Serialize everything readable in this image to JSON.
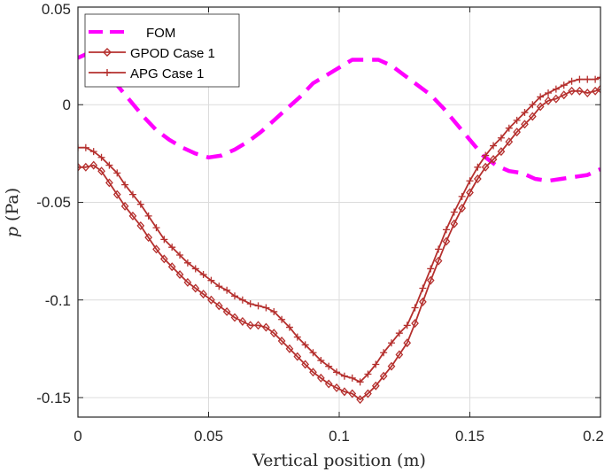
{
  "chart_data": {
    "type": "line",
    "title": "",
    "xlabel": "Vertical position (m)",
    "ylabel_symbol": "p",
    "ylabel_unit": "(Pa)",
    "xlim": [
      0,
      0.2
    ],
    "ylim": [
      -0.16,
      0.05
    ],
    "xticks": [
      0,
      0.05,
      0.1,
      0.15,
      0.2
    ],
    "xtick_labels": [
      "0",
      "0.05",
      "0.1",
      "0.15",
      "0.2"
    ],
    "yticks": [
      0.05,
      0,
      -0.05,
      -0.1,
      -0.15
    ],
    "ytick_labels": [
      "0.05",
      "0",
      "-0.05",
      "-0.1",
      "-0.15"
    ],
    "grid": true,
    "legend_position": "top-left",
    "series": [
      {
        "name": "FOM",
        "color": "#ff00ff",
        "style": "dashed",
        "marker": "none",
        "x": [
          0,
          0.005,
          0.01,
          0.015,
          0.02,
          0.025,
          0.03,
          0.035,
          0.04,
          0.045,
          0.05,
          0.055,
          0.06,
          0.065,
          0.07,
          0.075,
          0.08,
          0.085,
          0.09,
          0.095,
          0.1,
          0.105,
          0.11,
          0.115,
          0.12,
          0.125,
          0.13,
          0.135,
          0.14,
          0.145,
          0.15,
          0.155,
          0.16,
          0.165,
          0.17,
          0.175,
          0.18,
          0.185,
          0.19,
          0.195,
          0.2
        ],
        "y": [
          0.024,
          0.027,
          0.02,
          0.01,
          0.002,
          -0.006,
          -0.013,
          -0.018,
          -0.022,
          -0.025,
          -0.027,
          -0.026,
          -0.023,
          -0.019,
          -0.014,
          -0.008,
          -0.002,
          0.004,
          0.011,
          0.015,
          0.019,
          0.023,
          0.023,
          0.023,
          0.02,
          0.015,
          0.01,
          0.005,
          -0.002,
          -0.01,
          -0.018,
          -0.026,
          -0.031,
          -0.034,
          -0.035,
          -0.038,
          -0.039,
          -0.038,
          -0.037,
          -0.036,
          -0.033
        ]
      },
      {
        "name": "GPOD Case 1",
        "color": "#b5302e",
        "style": "solid",
        "marker": "diamond",
        "x": [
          0,
          0.003,
          0.006,
          0.009,
          0.012,
          0.015,
          0.018,
          0.021,
          0.024,
          0.027,
          0.03,
          0.033,
          0.036,
          0.039,
          0.042,
          0.045,
          0.048,
          0.051,
          0.054,
          0.057,
          0.06,
          0.063,
          0.066,
          0.069,
          0.072,
          0.075,
          0.078,
          0.081,
          0.084,
          0.087,
          0.09,
          0.093,
          0.096,
          0.099,
          0.102,
          0.105,
          0.108,
          0.111,
          0.114,
          0.117,
          0.12,
          0.123,
          0.126,
          0.129,
          0.132,
          0.135,
          0.138,
          0.141,
          0.144,
          0.147,
          0.15,
          0.153,
          0.156,
          0.159,
          0.162,
          0.165,
          0.168,
          0.171,
          0.174,
          0.177,
          0.18,
          0.183,
          0.186,
          0.189,
          0.192,
          0.195,
          0.198,
          0.2
        ],
        "y": [
          -0.032,
          -0.032,
          -0.031,
          -0.034,
          -0.04,
          -0.046,
          -0.052,
          -0.057,
          -0.062,
          -0.068,
          -0.074,
          -0.079,
          -0.083,
          -0.087,
          -0.091,
          -0.094,
          -0.097,
          -0.1,
          -0.103,
          -0.106,
          -0.109,
          -0.111,
          -0.113,
          -0.113,
          -0.114,
          -0.117,
          -0.121,
          -0.125,
          -0.129,
          -0.133,
          -0.137,
          -0.14,
          -0.143,
          -0.145,
          -0.147,
          -0.148,
          -0.151,
          -0.148,
          -0.144,
          -0.139,
          -0.134,
          -0.128,
          -0.122,
          -0.112,
          -0.101,
          -0.09,
          -0.08,
          -0.07,
          -0.061,
          -0.053,
          -0.045,
          -0.038,
          -0.032,
          -0.028,
          -0.024,
          -0.019,
          -0.014,
          -0.01,
          -0.006,
          -0.001,
          0.002,
          0.003,
          0.005,
          0.007,
          0.007,
          0.006,
          0.007,
          0.008
        ]
      },
      {
        "name": "APG Case 1",
        "color": "#b5302e",
        "style": "solid",
        "marker": "plus",
        "x": [
          0,
          0.003,
          0.006,
          0.009,
          0.012,
          0.015,
          0.018,
          0.021,
          0.024,
          0.027,
          0.03,
          0.033,
          0.036,
          0.039,
          0.042,
          0.045,
          0.048,
          0.051,
          0.054,
          0.057,
          0.06,
          0.063,
          0.066,
          0.069,
          0.072,
          0.075,
          0.078,
          0.081,
          0.084,
          0.087,
          0.09,
          0.093,
          0.096,
          0.099,
          0.102,
          0.105,
          0.108,
          0.111,
          0.114,
          0.117,
          0.12,
          0.123,
          0.126,
          0.129,
          0.132,
          0.135,
          0.138,
          0.141,
          0.144,
          0.147,
          0.15,
          0.153,
          0.156,
          0.159,
          0.162,
          0.165,
          0.168,
          0.171,
          0.174,
          0.177,
          0.18,
          0.183,
          0.186,
          0.189,
          0.192,
          0.195,
          0.198,
          0.2
        ],
        "y": [
          -0.022,
          -0.022,
          -0.024,
          -0.027,
          -0.031,
          -0.035,
          -0.041,
          -0.046,
          -0.051,
          -0.057,
          -0.063,
          -0.069,
          -0.073,
          -0.077,
          -0.081,
          -0.084,
          -0.087,
          -0.09,
          -0.093,
          -0.095,
          -0.098,
          -0.1,
          -0.102,
          -0.103,
          -0.104,
          -0.106,
          -0.11,
          -0.114,
          -0.119,
          -0.123,
          -0.127,
          -0.131,
          -0.134,
          -0.137,
          -0.139,
          -0.14,
          -0.142,
          -0.138,
          -0.133,
          -0.127,
          -0.122,
          -0.117,
          -0.113,
          -0.104,
          -0.094,
          -0.084,
          -0.074,
          -0.064,
          -0.055,
          -0.047,
          -0.039,
          -0.032,
          -0.026,
          -0.021,
          -0.017,
          -0.012,
          -0.008,
          -0.004,
          0.0,
          0.004,
          0.006,
          0.008,
          0.01,
          0.012,
          0.013,
          0.013,
          0.013,
          0.014
        ]
      }
    ]
  }
}
